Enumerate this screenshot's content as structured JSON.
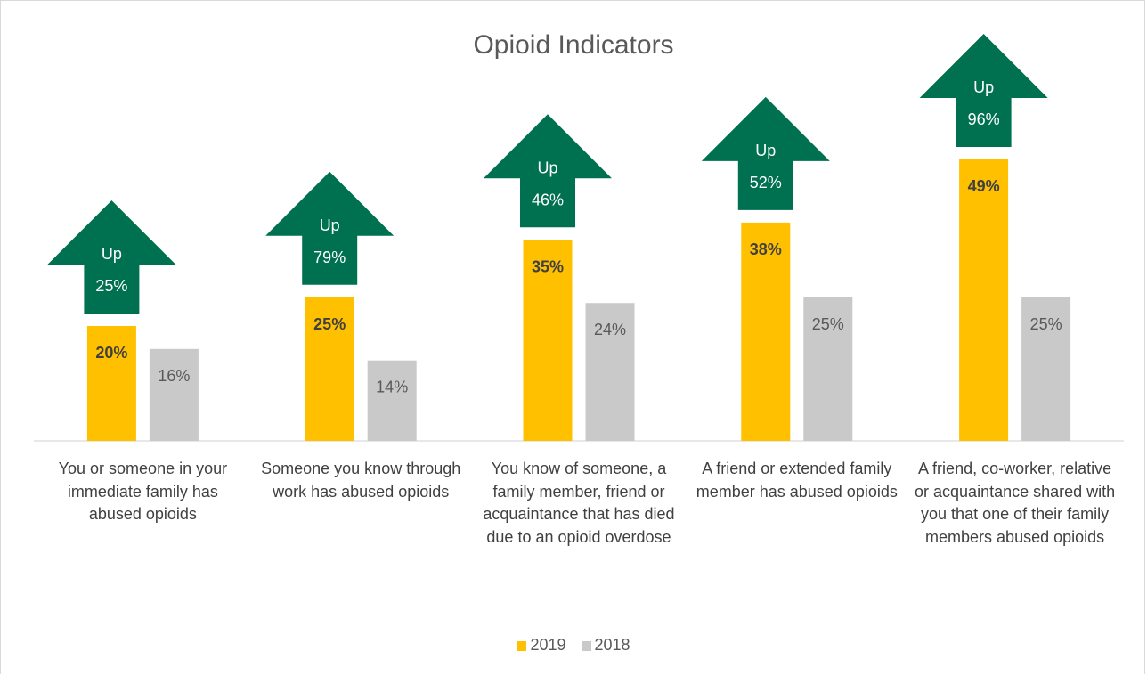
{
  "chart_data": {
    "type": "bar",
    "title": "Opioid Indicators",
    "categories": [
      "You or someone in your immediate family has abused opioids",
      "Someone you know through work has abused opioids",
      "You know of someone, a family member, friend or acquaintance that has died due to an opioid overdose",
      "A friend or extended family member has abused opioids",
      "A friend, co-worker, relative or acquaintance shared with you that one of their family members abused opioids"
    ],
    "series": [
      {
        "name": "2019",
        "values": [
          20,
          25,
          35,
          38,
          49
        ],
        "labels": [
          "20%",
          "25%",
          "35%",
          "38%",
          "49%"
        ],
        "color": "#ffc000"
      },
      {
        "name": "2018",
        "values": [
          16,
          14,
          24,
          25,
          25
        ],
        "labels": [
          "16%",
          "14%",
          "24%",
          "25%",
          "25%"
        ],
        "color": "#c9c9c9"
      }
    ],
    "annotations": [
      {
        "line1": "Up",
        "line2": "25%"
      },
      {
        "line1": "Up",
        "line2": "79%"
      },
      {
        "line1": "Up",
        "line2": "46%"
      },
      {
        "line1": "Up",
        "line2": "52%"
      },
      {
        "line1": "Up",
        "line2": "96%"
      }
    ],
    "annotation_color": "#007150",
    "ylim": [
      0,
      52
    ],
    "grid": false,
    "legend_position": "bottom"
  }
}
